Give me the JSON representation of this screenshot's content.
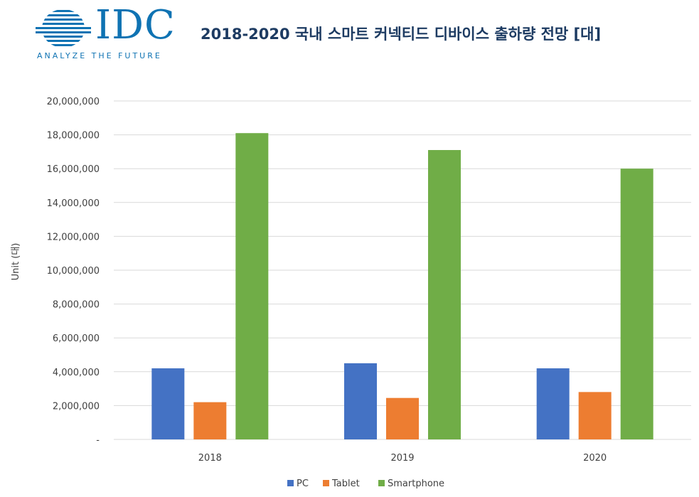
{
  "header": {
    "logo_text": "IDC",
    "logo_tagline": "ANALYZE THE FUTURE",
    "title": "2018-2020 국내 스마트 커넥티드 디바이스 출하량 전망 [대]"
  },
  "colors": {
    "pc": "#4472c4",
    "tablet": "#ed7d31",
    "smartphone": "#70ad47",
    "grid": "#d9d9d9",
    "logo": "#0f73b3",
    "title": "#1d3b62"
  },
  "chart_data": {
    "type": "bar",
    "title": "2018-2020 국내 스마트 커넥티드 디바이스 출하량 전망 [대]",
    "xlabel": "",
    "ylabel": "Unit (대)",
    "categories": [
      "2018",
      "2019",
      "2020"
    ],
    "series": [
      {
        "name": "PC",
        "values": [
          4200000,
          4500000,
          4200000
        ]
      },
      {
        "name": "Tablet",
        "values": [
          2200000,
          2450000,
          2800000
        ]
      },
      {
        "name": "Smartphone",
        "values": [
          18100000,
          17100000,
          16000000
        ]
      }
    ],
    "ylim": [
      0,
      20000000
    ],
    "yticks": [
      "-",
      "2,000,000",
      "4,000,000",
      "6,000,000",
      "8,000,000",
      "10,000,000",
      "12,000,000",
      "14,000,000",
      "16,000,000",
      "18,000,000",
      "20,000,000"
    ],
    "grid": true,
    "legend": "bottom"
  }
}
